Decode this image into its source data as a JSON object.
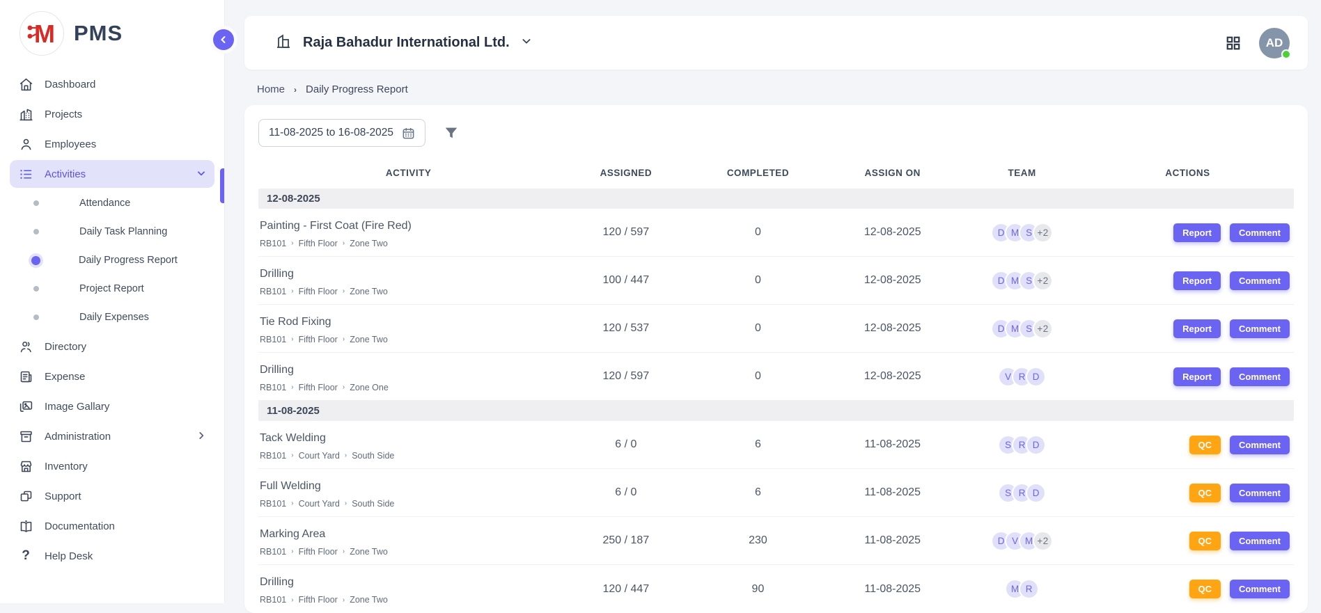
{
  "app": {
    "logo_text": "PMS"
  },
  "colors": {
    "accent_purple": "#6b63f1",
    "active_pill_bg": "#e3e2fb",
    "qc_orange": "#ffa513",
    "avatar_bg": "#8595a9",
    "online_green": "#4cd137",
    "page_bg": "#f4f5f9",
    "group_row_bg": "#efeff1",
    "logo_red": "#d92b25"
  },
  "sidebar": {
    "items": [
      {
        "label": "Dashboard",
        "icon": "home-icon",
        "active": false
      },
      {
        "label": "Projects",
        "icon": "building-icon",
        "active": false
      },
      {
        "label": "Employees",
        "icon": "person-icon",
        "active": false
      },
      {
        "label": "Activities",
        "icon": "list-icon",
        "active": true,
        "chevron": "down",
        "submenu": [
          {
            "label": "Attendance",
            "active": false
          },
          {
            "label": "Daily Task Planning",
            "active": false
          },
          {
            "label": "Daily Progress Report",
            "active": true
          },
          {
            "label": "Project Report",
            "active": false
          },
          {
            "label": "Daily Expenses",
            "active": false
          }
        ]
      },
      {
        "label": "Directory",
        "icon": "people-icon",
        "active": false
      },
      {
        "label": "Expense",
        "icon": "receipt-icon",
        "active": false
      },
      {
        "label": "Image Gallary",
        "icon": "image-icon",
        "active": false
      },
      {
        "label": "Administration",
        "icon": "archive-icon",
        "active": false,
        "chevron": "right"
      },
      {
        "label": "Inventory",
        "icon": "store-icon",
        "active": false
      },
      {
        "label": "Support",
        "icon": "copy-icon",
        "active": false
      },
      {
        "label": "Documentation",
        "icon": "book-icon",
        "active": false
      },
      {
        "label": "Help Desk",
        "icon": "question-icon",
        "active": false
      }
    ]
  },
  "header": {
    "company": "Raja Bahadur International Ltd.",
    "avatar_initials": "AD"
  },
  "breadcrumb": {
    "home": "Home",
    "current": "Daily Progress Report"
  },
  "filters": {
    "date_range": "11-08-2025 to 16-08-2025"
  },
  "table": {
    "columns": [
      "ACTIVITY",
      "ASSIGNED",
      "COMPLETED",
      "ASSIGN ON",
      "TEAM",
      "ACTIONS"
    ],
    "groups": [
      {
        "date": "12-08-2025",
        "rows": [
          {
            "activity": "Painting - First Coat (Fire Red)",
            "path": [
              "RB101",
              "Fifth Floor",
              "Zone Two"
            ],
            "assigned": "120 / 597",
            "completed": "0",
            "assign_on": "12-08-2025",
            "team": [
              "D",
              "M",
              "S"
            ],
            "team_more": "+2",
            "actions": [
              "Report",
              "Comment"
            ]
          },
          {
            "activity": "Drilling",
            "path": [
              "RB101",
              "Fifth Floor",
              "Zone Two"
            ],
            "assigned": "100 / 447",
            "completed": "0",
            "assign_on": "12-08-2025",
            "team": [
              "D",
              "M",
              "S"
            ],
            "team_more": "+2",
            "actions": [
              "Report",
              "Comment"
            ]
          },
          {
            "activity": "Tie Rod Fixing",
            "path": [
              "RB101",
              "Fifth Floor",
              "Zone Two"
            ],
            "assigned": "120 / 537",
            "completed": "0",
            "assign_on": "12-08-2025",
            "team": [
              "D",
              "M",
              "S"
            ],
            "team_more": "+2",
            "actions": [
              "Report",
              "Comment"
            ]
          },
          {
            "activity": "Drilling",
            "path": [
              "RB101",
              "Fifth Floor",
              "Zone One"
            ],
            "assigned": "120 / 597",
            "completed": "0",
            "assign_on": "12-08-2025",
            "team": [
              "V",
              "R",
              "D"
            ],
            "team_more": null,
            "actions": [
              "Report",
              "Comment"
            ]
          }
        ]
      },
      {
        "date": "11-08-2025",
        "rows": [
          {
            "activity": "Tack Welding",
            "path": [
              "RB101",
              "Court Yard",
              "South Side"
            ],
            "assigned": "6 / 0",
            "completed": "6",
            "assign_on": "11-08-2025",
            "team": [
              "S",
              "R",
              "D"
            ],
            "team_more": null,
            "actions": [
              "QC",
              "Comment"
            ]
          },
          {
            "activity": "Full Welding",
            "path": [
              "RB101",
              "Court Yard",
              "South Side"
            ],
            "assigned": "6 / 0",
            "completed": "6",
            "assign_on": "11-08-2025",
            "team": [
              "S",
              "R",
              "D"
            ],
            "team_more": null,
            "actions": [
              "QC",
              "Comment"
            ]
          },
          {
            "activity": "Marking Area",
            "path": [
              "RB101",
              "Fifth Floor",
              "Zone Two"
            ],
            "assigned": "250 / 187",
            "completed": "230",
            "assign_on": "11-08-2025",
            "team": [
              "D",
              "V",
              "M"
            ],
            "team_more": "+2",
            "actions": [
              "QC",
              "Comment"
            ]
          },
          {
            "activity": "Drilling",
            "path": [
              "RB101",
              "Fifth Floor",
              "Zone Two"
            ],
            "assigned": "120 / 447",
            "completed": "90",
            "assign_on": "11-08-2025",
            "team": [
              "M",
              "R"
            ],
            "team_more": null,
            "actions": [
              "QC",
              "Comment"
            ]
          }
        ]
      }
    ]
  }
}
